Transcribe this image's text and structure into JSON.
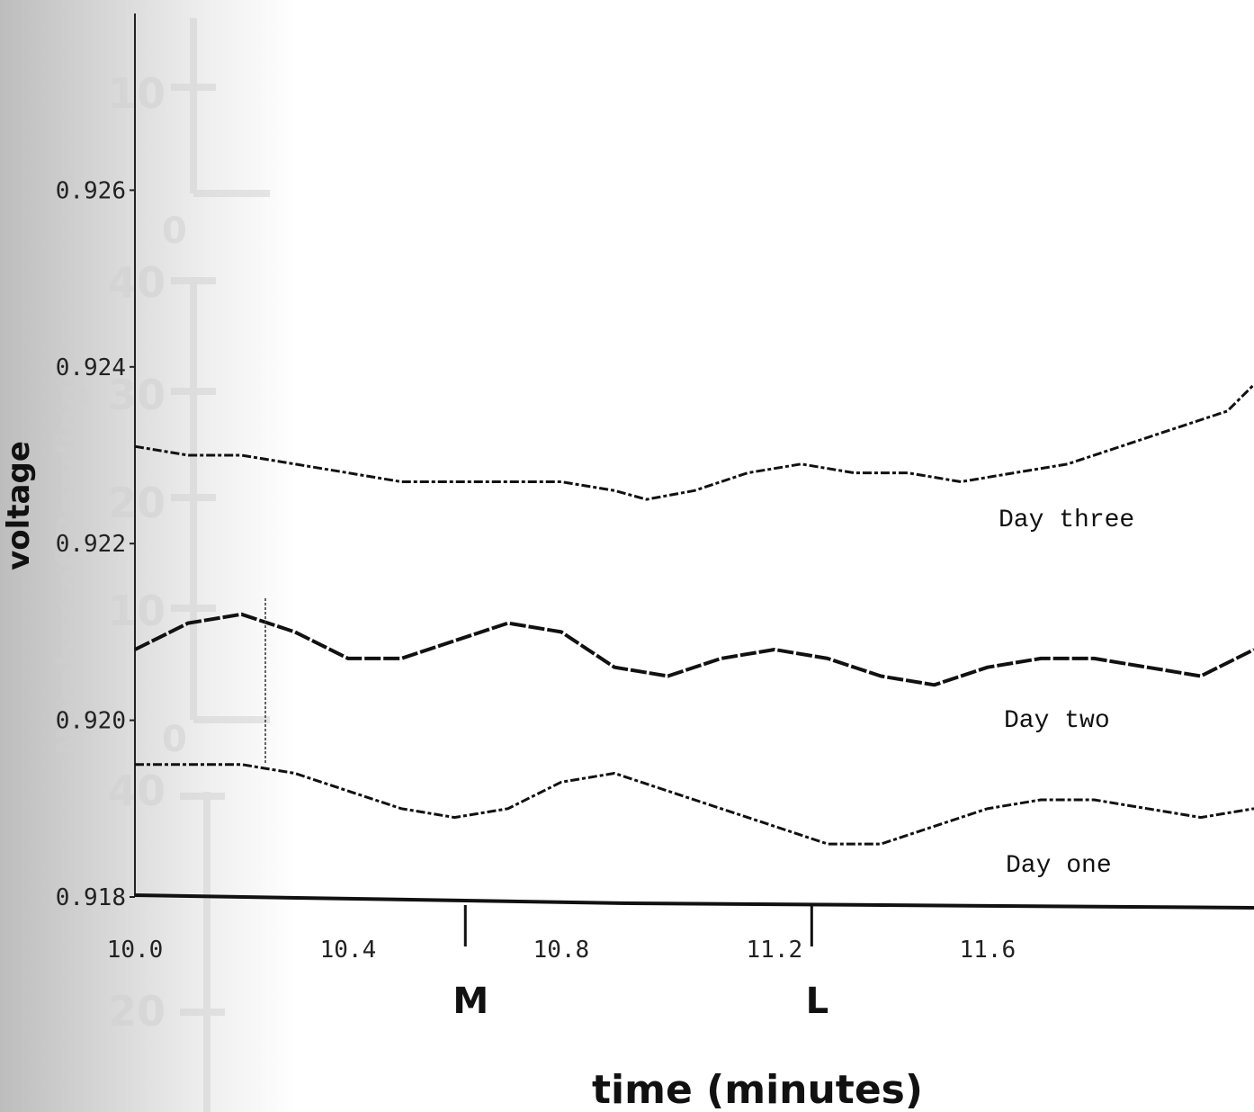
{
  "chart_data": {
    "type": "line",
    "xlabel": "time (minutes)",
    "ylabel": "voltage",
    "xlim": [
      10.0,
      12.1
    ],
    "ylim": [
      0.918,
      0.928
    ],
    "x_ticks": [
      {
        "value": 10.0,
        "label": "10.0"
      },
      {
        "value": 10.4,
        "label": "10.4"
      },
      {
        "value": 10.8,
        "label": "10.8"
      },
      {
        "value": 11.2,
        "label": "11.2"
      },
      {
        "value": 11.6,
        "label": "11.6"
      }
    ],
    "y_ticks": [
      {
        "value": 0.918,
        "label": "0.918"
      },
      {
        "value": 0.92,
        "label": "0.920"
      },
      {
        "value": 0.922,
        "label": "0.922"
      },
      {
        "value": 0.924,
        "label": "0.924"
      },
      {
        "value": 0.926,
        "label": "0.926"
      }
    ],
    "markers": [
      {
        "x": 10.62,
        "label": "M"
      },
      {
        "x": 11.27,
        "label": "L"
      }
    ],
    "series": [
      {
        "name": "Day three",
        "x": [
          10.0,
          10.1,
          10.2,
          10.3,
          10.4,
          10.5,
          10.6,
          10.7,
          10.8,
          10.9,
          10.96,
          11.05,
          11.15,
          11.25,
          11.35,
          11.45,
          11.55,
          11.65,
          11.75,
          11.85,
          11.95,
          12.05,
          12.1
        ],
        "y": [
          0.9231,
          0.923,
          0.923,
          0.9229,
          0.9228,
          0.9227,
          0.9227,
          0.9227,
          0.9227,
          0.9226,
          0.9225,
          0.9226,
          0.9228,
          0.9229,
          0.9228,
          0.9228,
          0.9227,
          0.9228,
          0.9229,
          0.9231,
          0.9233,
          0.9235,
          0.9238
        ]
      },
      {
        "name": "Day two",
        "x": [
          10.0,
          10.1,
          10.2,
          10.3,
          10.4,
          10.5,
          10.6,
          10.7,
          10.8,
          10.9,
          11.0,
          11.1,
          11.2,
          11.3,
          11.4,
          11.5,
          11.6,
          11.7,
          11.8,
          11.9,
          12.0,
          12.1
        ],
        "y": [
          0.9208,
          0.9211,
          0.9212,
          0.921,
          0.9207,
          0.9207,
          0.9209,
          0.9211,
          0.921,
          0.9206,
          0.9205,
          0.9207,
          0.9208,
          0.9207,
          0.9205,
          0.9204,
          0.9206,
          0.9207,
          0.9207,
          0.9206,
          0.9205,
          0.9208
        ]
      },
      {
        "name": "Day one",
        "x": [
          10.0,
          10.1,
          10.2,
          10.3,
          10.4,
          10.5,
          10.6,
          10.7,
          10.8,
          10.9,
          11.0,
          11.1,
          11.2,
          11.3,
          11.4,
          11.5,
          11.6,
          11.7,
          11.8,
          11.9,
          12.0,
          12.1
        ],
        "y": [
          0.9195,
          0.9195,
          0.9195,
          0.9194,
          0.9192,
          0.919,
          0.9189,
          0.919,
          0.9193,
          0.9194,
          0.9192,
          0.919,
          0.9188,
          0.9186,
          0.9186,
          0.9188,
          0.919,
          0.9191,
          0.9191,
          0.919,
          0.9189,
          0.919
        ]
      }
    ]
  }
}
